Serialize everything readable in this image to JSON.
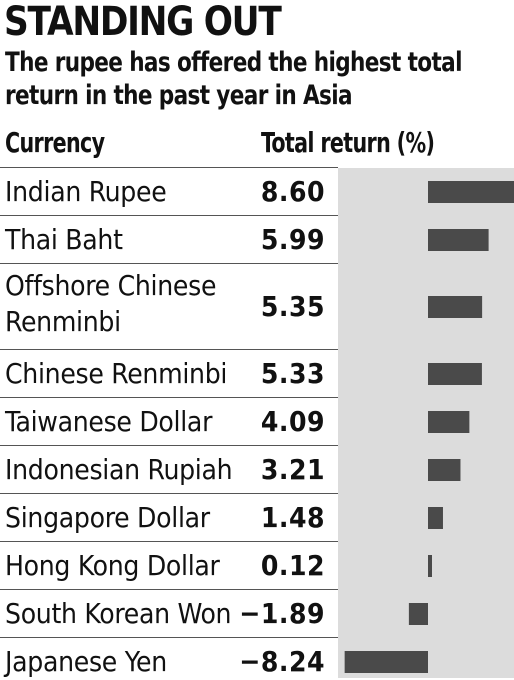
{
  "header": {
    "title": "STANDING OUT",
    "subtitle_line1": "The rupee has offered the highest total",
    "subtitle_line2": "return in the past year in Asia"
  },
  "table": {
    "col_currency": "Currency",
    "col_return": "Total return (%)"
  },
  "rows": [
    {
      "currency": "Indian Rupee",
      "value": "8.60"
    },
    {
      "currency": "Thai Baht",
      "value": "5.99"
    },
    {
      "currency": "Offshore Chinese Renminbi",
      "value": "5.35"
    },
    {
      "currency": "Chinese Renminbi",
      "value": "5.33"
    },
    {
      "currency": "Taiwanese Dollar",
      "value": "4.09"
    },
    {
      "currency": "Indonesian Rupiah",
      "value": "3.21"
    },
    {
      "currency": "Singapore Dollar",
      "value": "1.48"
    },
    {
      "currency": "Hong Kong Dollar",
      "value": "0.12"
    },
    {
      "currency": "South Korean Won",
      "value": "−1.89"
    },
    {
      "currency": "Japanese Yen",
      "value": "−8.24"
    }
  ],
  "colors": {
    "bar": "#4a4a4a",
    "panel": "#dcdcdc",
    "text": "#111111"
  },
  "chart_data": {
    "type": "bar",
    "orientation": "horizontal",
    "title": "STANDING OUT",
    "subtitle": "The rupee has offered the highest total return in the past year in Asia",
    "ylabel": "Currency",
    "xlabel": "Total return (%)",
    "categories": [
      "Indian Rupee",
      "Thai Baht",
      "Offshore Chinese Renminbi",
      "Chinese Renminbi",
      "Taiwanese Dollar",
      "Indonesian Rupiah",
      "Singapore Dollar",
      "Hong Kong Dollar",
      "South Korean Won",
      "Japanese Yen"
    ],
    "values": [
      8.6,
      5.99,
      5.35,
      5.33,
      4.09,
      3.21,
      1.48,
      0.12,
      -1.89,
      -8.24
    ],
    "xlim": [
      -8.24,
      8.6
    ],
    "grid": false,
    "legend": "none"
  }
}
